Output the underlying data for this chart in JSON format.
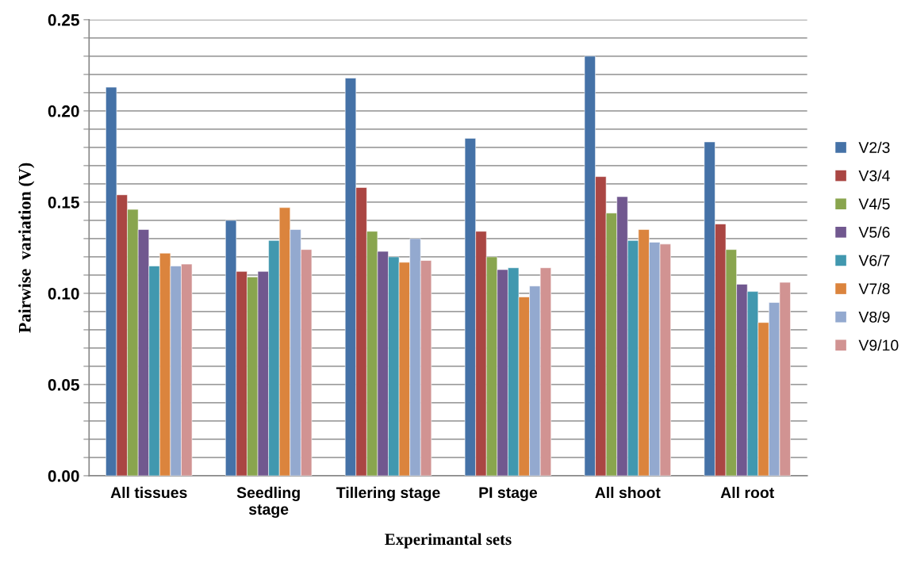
{
  "chart_data": {
    "type": "bar",
    "xlabel": "Experimantal sets",
    "ylabel": "Pairwise  variation (V)",
    "categories": [
      "All tissues",
      "Seedling\nstage",
      "Tillering stage",
      "PI stage",
      "All shoot",
      "All root"
    ],
    "series": [
      {
        "name": "V2/3",
        "color": "#4572a7",
        "values": [
          0.213,
          0.14,
          0.218,
          0.185,
          0.23,
          0.183
        ]
      },
      {
        "name": "V3/4",
        "color": "#aa4643",
        "values": [
          0.154,
          0.112,
          0.158,
          0.134,
          0.164,
          0.138
        ]
      },
      {
        "name": "V4/5",
        "color": "#89a54e",
        "values": [
          0.146,
          0.109,
          0.134,
          0.12,
          0.144,
          0.124
        ]
      },
      {
        "name": "V5/6",
        "color": "#71588f",
        "values": [
          0.135,
          0.112,
          0.123,
          0.113,
          0.153,
          0.105
        ]
      },
      {
        "name": "V6/7",
        "color": "#4198af",
        "values": [
          0.115,
          0.129,
          0.12,
          0.114,
          0.129,
          0.101
        ]
      },
      {
        "name": "V7/8",
        "color": "#db843d",
        "values": [
          0.122,
          0.147,
          0.117,
          0.098,
          0.135,
          0.084
        ]
      },
      {
        "name": "V8/9",
        "color": "#93a9cf",
        "values": [
          0.115,
          0.135,
          0.13,
          0.104,
          0.128,
          0.095
        ]
      },
      {
        "name": "V9/10",
        "color": "#d19392",
        "values": [
          0.116,
          0.124,
          0.118,
          0.114,
          0.127,
          0.106
        ]
      }
    ],
    "ylim": [
      0,
      0.25
    ],
    "yticks": [
      {
        "value": 0,
        "label": "0.00"
      },
      {
        "value": 0.01,
        "label": null
      },
      {
        "value": 0.02,
        "label": null
      },
      {
        "value": 0.03,
        "label": null
      },
      {
        "value": 0.04,
        "label": null
      },
      {
        "value": 0.05,
        "label": "0.05"
      },
      {
        "value": 0.06,
        "label": null
      },
      {
        "value": 0.07,
        "label": null
      },
      {
        "value": 0.08,
        "label": null
      },
      {
        "value": 0.09,
        "label": null
      },
      {
        "value": 0.1,
        "label": "0.10"
      },
      {
        "value": 0.11,
        "label": null
      },
      {
        "value": 0.12,
        "label": null
      },
      {
        "value": 0.13,
        "label": null
      },
      {
        "value": 0.14,
        "label": null
      },
      {
        "value": 0.15,
        "label": "0.15"
      },
      {
        "value": 0.16,
        "label": null
      },
      {
        "value": 0.17,
        "label": null
      },
      {
        "value": 0.18,
        "label": null
      },
      {
        "value": 0.19,
        "label": null
      },
      {
        "value": 0.2,
        "label": "0.20"
      },
      {
        "value": 0.21,
        "label": null
      },
      {
        "value": 0.22,
        "label": null
      },
      {
        "value": 0.23,
        "label": null
      },
      {
        "value": 0.24,
        "label": null
      },
      {
        "value": 0.25,
        "label": "0.25"
      }
    ],
    "grid": "y",
    "legend": "right"
  }
}
